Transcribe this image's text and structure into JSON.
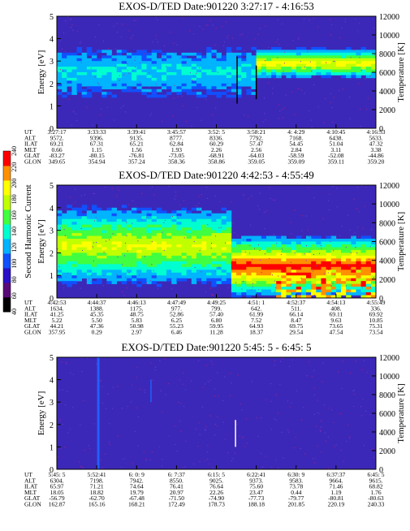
{
  "chart_data": [
    {
      "type": "heatmap",
      "title": "EXOS-D/TED   Date:901220  3:27:17 - 4:16:53",
      "ylabel": "Energy [eV]",
      "y2label": "Temperature [K]",
      "ylim": [
        0,
        5
      ],
      "y2lim": [
        0,
        12000
      ],
      "yticks": [
        "0",
        "1",
        "2",
        "3",
        "4",
        "5"
      ],
      "y2ticks": [
        "0",
        "2000",
        "4000",
        "6000",
        "8000",
        "10000",
        "12000"
      ],
      "rows": [
        {
          "label": "UT",
          "values": [
            "3:27:17",
            "3:33:33",
            "3:39:41",
            "3:45:57",
            "3:52: 5",
            "3:58:21",
            "4: 4:29",
            "4:10:45",
            "4:16:53"
          ]
        },
        {
          "label": "ALT",
          "values": [
            "9572.",
            "9396.",
            "9135.",
            "8777.",
            "8336.",
            "7792.",
            "7168.",
            "6438.",
            "5633."
          ]
        },
        {
          "label": "ILAT",
          "values": [
            "69.21",
            "67.31",
            "65.21",
            "62.84",
            "60.29",
            "57.47",
            "54.45",
            "51.04",
            "47.32"
          ]
        },
        {
          "label": "MLT",
          "values": [
            "0.66",
            "1.15",
            "1.56",
            "1.93",
            "2.26",
            "2.56",
            "2.84",
            "3.11",
            "3.38"
          ]
        },
        {
          "label": "GLAT",
          "values": [
            "-83.27",
            "-80.15",
            "-76.81",
            "-73.05",
            "-68.91",
            "-64.03",
            "-58.59",
            "-52.08",
            "-44.86"
          ]
        },
        {
          "label": "GLON",
          "values": [
            "349.65",
            "354.94",
            "357.24",
            "358.36",
            "358.86",
            "359.05",
            "359.09",
            "359.11",
            "359.20"
          ]
        }
      ],
      "features": [
        {
          "x0": 0.62,
          "x1": 1.0,
          "y": 2.9,
          "width": 0.7,
          "intensity": 0.55
        },
        {
          "x0": 0.0,
          "x1": 0.62,
          "y": 2.5,
          "width": 1.2,
          "intensity": 0.2
        }
      ],
      "lines": [
        {
          "x": 0.565,
          "y0": 1.1,
          "y1": 3.2
        },
        {
          "x": 0.625,
          "y0": 1.3,
          "y1": 2.8
        }
      ]
    },
    {
      "type": "heatmap",
      "title": "EXOS-D/TED   Date:901220  4:42:53 - 4:55:49",
      "ylabel": "Energy [eV]",
      "y2label": "Temperature [K]",
      "ylim": [
        0,
        5
      ],
      "y2lim": [
        0,
        12000
      ],
      "yticks": [
        "0",
        "1",
        "2",
        "3",
        "4",
        "5"
      ],
      "y2ticks": [
        "0",
        "2000",
        "4000",
        "6000",
        "8000",
        "10000",
        "12000"
      ],
      "rows": [
        {
          "label": "UT",
          "values": [
            "4:42:53",
            "4:44:37",
            "4:46:13",
            "4:47:49",
            "4:49:25",
            "4:51: 1",
            "4:52:37",
            "4:54:13",
            "4:55:49"
          ]
        },
        {
          "label": "ALT",
          "values": [
            "1634.",
            "1388.",
            "1175.",
            "977.",
            "799.",
            "642.",
            "511.",
            "408.",
            "336."
          ]
        },
        {
          "label": "ILAT",
          "values": [
            "41.25",
            "45.35",
            "48.75",
            "52.86",
            "57.40",
            "61.99",
            "66.14",
            "69.11",
            "69.92"
          ]
        },
        {
          "label": "MLT",
          "values": [
            "5.22",
            "5.50",
            "5.83",
            "6.25",
            "6.80",
            "7.52",
            "8.47",
            "9.63",
            "10.85"
          ]
        },
        {
          "label": "GLAT",
          "values": [
            "44.21",
            "47.36",
            "50.98",
            "55.23",
            "59.95",
            "64.93",
            "69.75",
            "73.65",
            "75.31"
          ]
        },
        {
          "label": "GLON",
          "values": [
            "357.95",
            "0.29",
            "2.97",
            "6.46",
            "11.28",
            "18.37",
            "29.54",
            "47.54",
            "73.54"
          ]
        }
      ],
      "features": [
        {
          "x0": 0.0,
          "x1": 0.55,
          "y": 2.3,
          "width": 1.8,
          "intensity": 0.5
        },
        {
          "x0": 0.55,
          "x1": 1.0,
          "y": 1.4,
          "width": 1.4,
          "intensity": 0.75
        }
      ],
      "lines": []
    },
    {
      "type": "heatmap",
      "title": "EXOS-D/TED   Date:901220  5:45: 5 - 6:45: 5",
      "ylabel": "Energy [eV]",
      "y2label": "Temperature [K]",
      "ylim": [
        0,
        5
      ],
      "y2lim": [
        0,
        12000
      ],
      "yticks": [
        "0",
        "1",
        "2",
        "3",
        "4",
        "5"
      ],
      "y2ticks": [
        "0",
        "2000",
        "4000",
        "6000",
        "8000",
        "10000",
        "12000"
      ],
      "rows": [
        {
          "label": "UT",
          "values": [
            "5:45: 5",
            "5:52:41",
            "6: 0: 9",
            "6: 7:37",
            "6:15: 5",
            "6:22:41",
            "6:30: 9",
            "6:37:37",
            "6:45: 5"
          ]
        },
        {
          "label": "ALT",
          "values": [
            "6304.",
            "7198.",
            "7942.",
            "8550.",
            "9025.",
            "9373.",
            "9583.",
            "9664.",
            "9615."
          ]
        },
        {
          "label": "ILAT",
          "values": [
            "65.97",
            "71.21",
            "74.64",
            "76.41",
            "76.64",
            "75.60",
            "73.78",
            "71.46",
            "68.82"
          ]
        },
        {
          "label": "MLT",
          "values": [
            "18.05",
            "18.82",
            "19.79",
            "20.97",
            "22.26",
            "23.47",
            "0.44",
            "1.19",
            "1.76"
          ]
        },
        {
          "label": "GLAT",
          "values": [
            "-56.79",
            "-62.70",
            "-67.48",
            "-71.50",
            "-74.90",
            "-77.73",
            "-79.77",
            "-80.81",
            "-80.63"
          ]
        },
        {
          "label": "GLON",
          "values": [
            "162.87",
            "165.16",
            "168.21",
            "172.49",
            "178.73",
            "188.18",
            "201.85",
            "220.19",
            "240.33"
          ]
        }
      ],
      "features": [],
      "lines": [
        {
          "x": 0.13,
          "y0": 0,
          "y1": 5
        },
        {
          "x": 0.295,
          "y0": 3.0,
          "y1": 4.0
        },
        {
          "x": 0.56,
          "y0": 1.0,
          "y1": 2.2
        }
      ]
    }
  ],
  "colorbar": {
    "label": "Second Harmonic Current",
    "ticks": [
      "40",
      "60",
      "80",
      "100",
      "120",
      "140",
      "160",
      "180",
      "200",
      "220",
      "240"
    ],
    "stops": [
      "#000000",
      "#5a0a78",
      "#2a10c8",
      "#1050ff",
      "#00b4ff",
      "#00ffd0",
      "#40ff40",
      "#c0ff00",
      "#ffff00",
      "#ff9000",
      "#ff0000"
    ]
  }
}
